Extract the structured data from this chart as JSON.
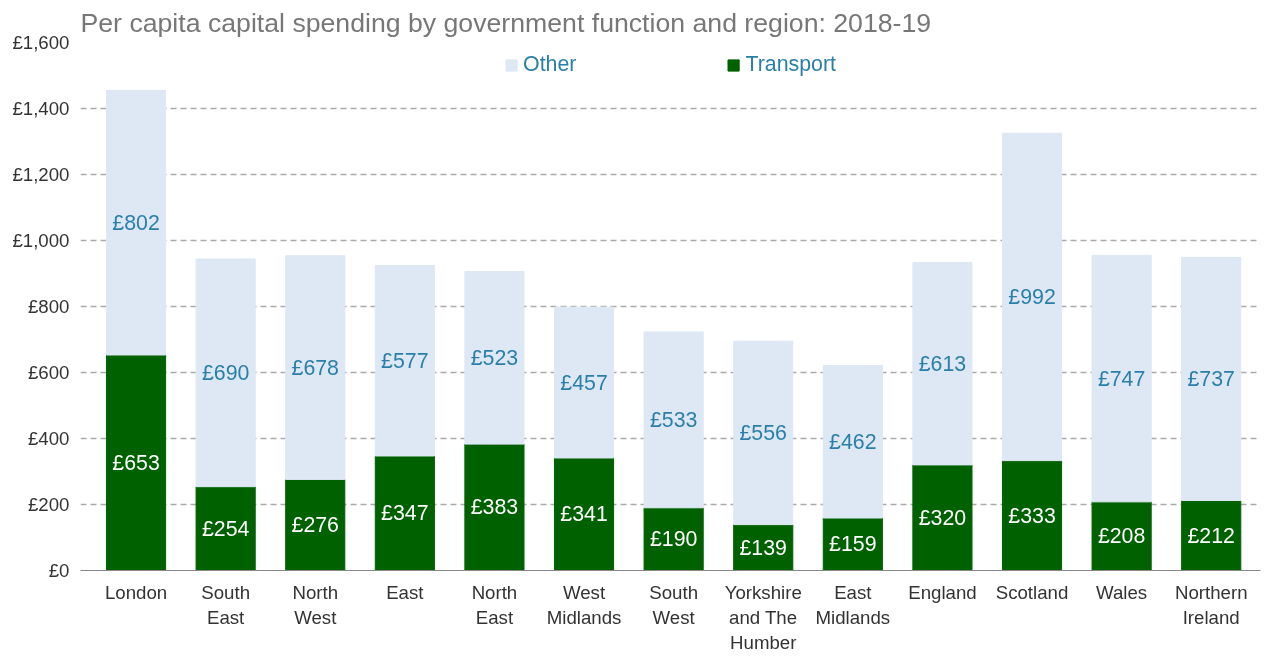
{
  "chart_data": {
    "type": "bar",
    "stacked": true,
    "title": "Per capita capital spending by government function and region: 2018-19",
    "categories": [
      "London",
      "South East",
      "North West",
      "East",
      "North East",
      "West Midlands",
      "South West",
      "Yorkshire and The Humber",
      "East Midlands",
      "England",
      "Scotland",
      "Wales",
      "Northern Ireland"
    ],
    "series": [
      {
        "name": "Transport",
        "color": "#006100",
        "values": [
          653,
          254,
          276,
          347,
          383,
          341,
          190,
          139,
          159,
          320,
          333,
          208,
          212
        ],
        "value_labels": [
          "£653",
          "£254",
          "£276",
          "£347",
          "£383",
          "£341",
          "£190",
          "£139",
          "£159",
          "£320",
          "£333",
          "£208",
          "£212"
        ]
      },
      {
        "name": "Other",
        "color": "#dde8f4",
        "values": [
          802,
          690,
          678,
          577,
          523,
          457,
          533,
          556,
          462,
          613,
          992,
          747,
          737
        ],
        "value_labels": [
          "£802",
          "£690",
          "£678",
          "£577",
          "£523",
          "£457",
          "£533",
          "£556",
          "£462",
          "£613",
          "£992",
          "£747",
          "£737"
        ]
      }
    ],
    "ylim": [
      0,
      1600
    ],
    "yticks": [
      {
        "value": 0,
        "label": "£0"
      },
      {
        "value": 200,
        "label": "£200"
      },
      {
        "value": 400,
        "label": "£400"
      },
      {
        "value": 600,
        "label": "£600"
      },
      {
        "value": 800,
        "label": "£800"
      },
      {
        "value": 1000,
        "label": "£1,000"
      },
      {
        "value": 1200,
        "label": "£1,200"
      },
      {
        "value": 1400,
        "label": "£1,400"
      },
      {
        "value": 1600,
        "label": "£1,600"
      }
    ],
    "grid": "y",
    "legend": "top"
  }
}
